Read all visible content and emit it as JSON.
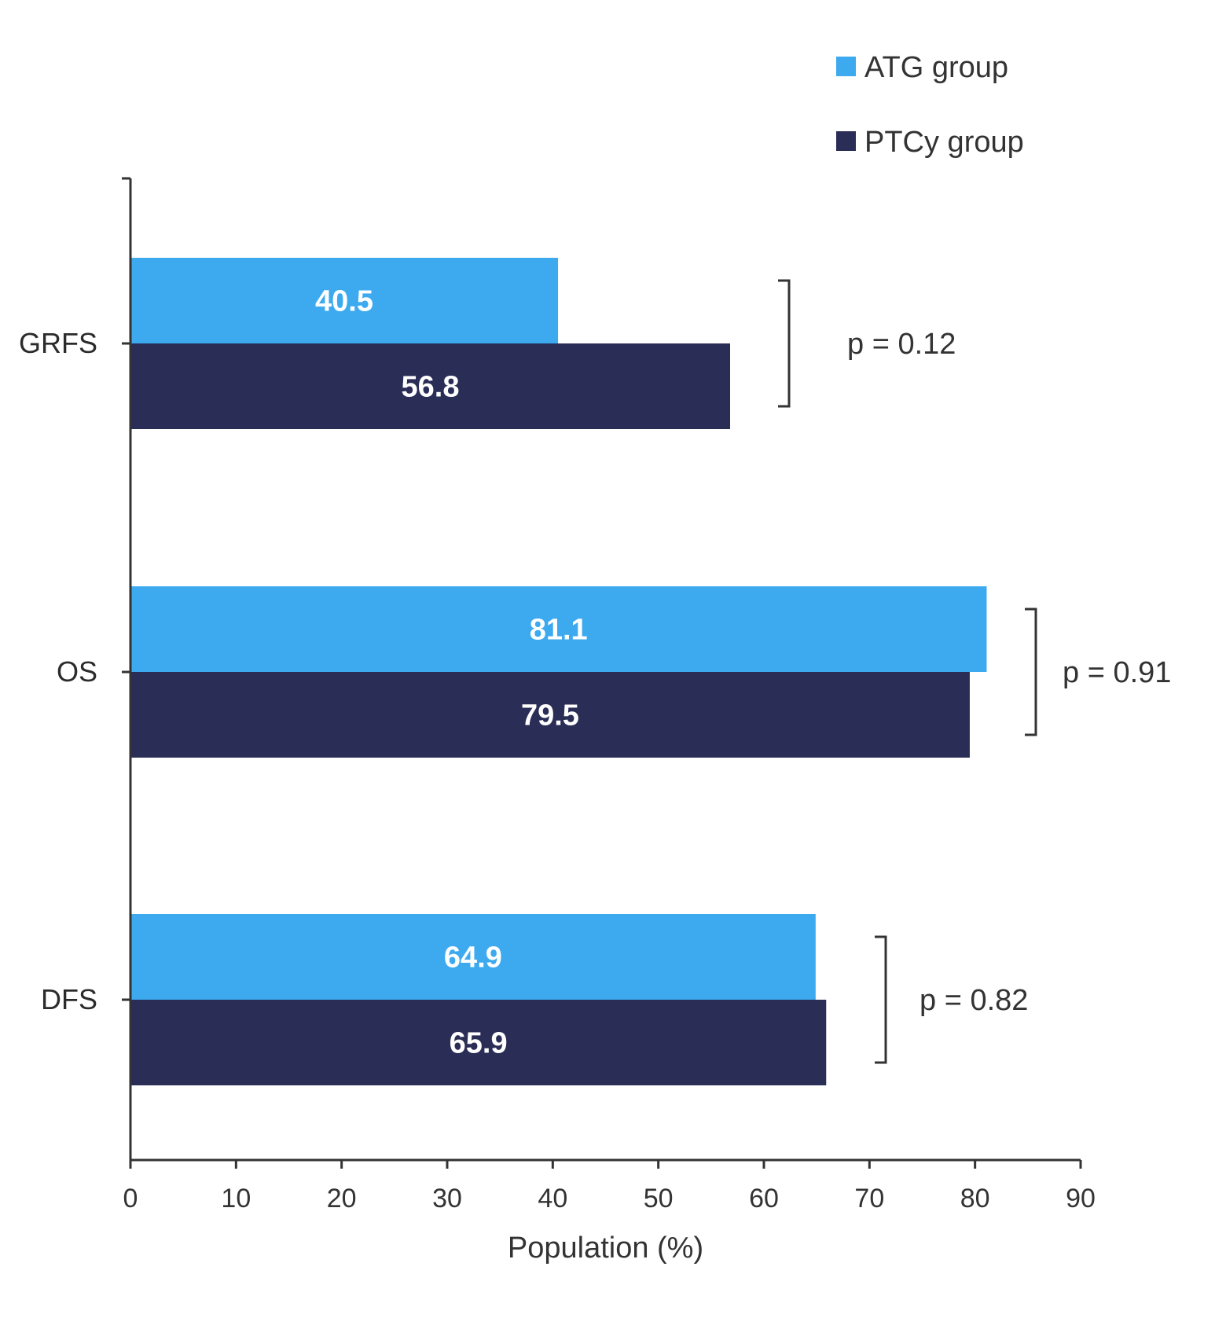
{
  "chart_data": {
    "type": "bar",
    "orientation": "horizontal",
    "categories": [
      "GRFS",
      "OS",
      "DFS"
    ],
    "series": [
      {
        "name": "ATG group",
        "values": [
          40.5,
          81.1,
          64.9
        ],
        "color": "#3DAAEF"
      },
      {
        "name": "PTCy group",
        "values": [
          56.8,
          79.5,
          65.9
        ],
        "color": "#2A2D55"
      }
    ],
    "data_labels": {
      "ATG group": [
        "40.5",
        "81.1",
        "64.9"
      ],
      "PTCy group": [
        "56.8",
        "79.5",
        "65.9"
      ]
    },
    "annotations": [
      "p = 0.12",
      "p = 0.91",
      "p = 0.82"
    ],
    "xlabel": "Population (%)",
    "ylabel": "",
    "title": "",
    "xlim": [
      0,
      90
    ],
    "xticks": [
      0,
      10,
      20,
      30,
      40,
      50,
      60,
      70,
      80,
      90
    ],
    "grid": false,
    "legend_position": "top-right"
  },
  "colors": {
    "axis": "#333333",
    "bracket": "#333333"
  }
}
